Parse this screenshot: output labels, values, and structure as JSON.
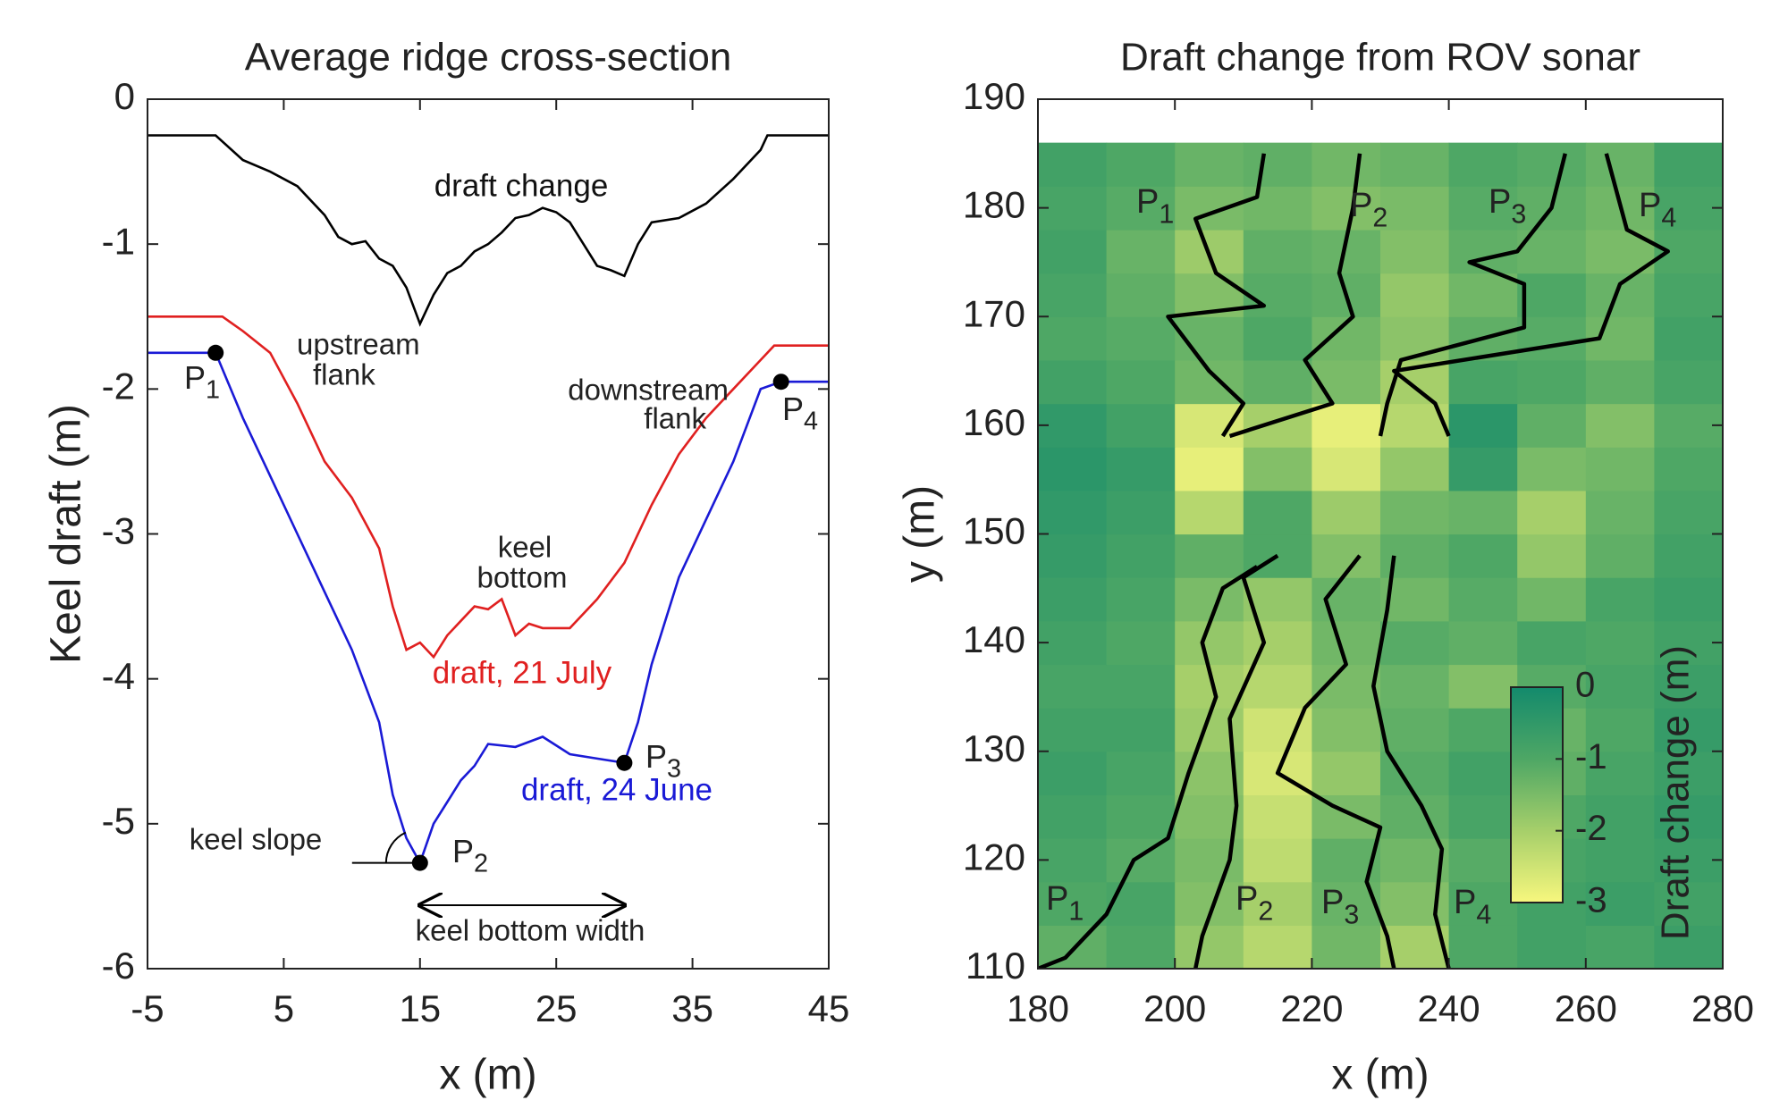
{
  "chart_data": [
    {
      "type": "line",
      "title": "Average ridge cross-section",
      "x_label": "x (m)",
      "y_label": "Keel draft (m)",
      "xlim": [
        -5,
        45
      ],
      "ylim": [
        -6,
        0
      ],
      "xticks": [
        -5,
        5,
        15,
        25,
        35,
        45
      ],
      "yticks": [
        0,
        -1,
        -2,
        -3,
        -4,
        -5,
        -6
      ],
      "series": [
        {
          "name": "draft change",
          "color": "#000000",
          "x": [
            -5,
            0,
            2,
            4,
            6,
            8,
            9,
            10,
            11,
            12,
            13,
            14,
            15,
            16,
            17,
            18,
            19,
            20,
            21,
            22,
            23,
            24,
            25,
            26,
            27,
            28,
            29,
            30,
            31,
            32,
            34,
            36,
            38,
            40,
            40.5,
            45
          ],
          "values": [
            -0.25,
            -0.25,
            -0.42,
            -0.5,
            -0.6,
            -0.8,
            -0.95,
            -1.0,
            -0.98,
            -1.1,
            -1.15,
            -1.3,
            -1.55,
            -1.35,
            -1.2,
            -1.15,
            -1.05,
            -1.0,
            -0.92,
            -0.82,
            -0.8,
            -0.75,
            -0.78,
            -0.85,
            -1.0,
            -1.15,
            -1.18,
            -1.22,
            -1.0,
            -0.85,
            -0.82,
            -0.72,
            -0.55,
            -0.35,
            -0.25,
            -0.25
          ]
        },
        {
          "name": "draft, 21 July",
          "color": "#e02020",
          "x": [
            -5,
            0.5,
            2,
            4,
            6,
            8,
            10,
            12,
            13,
            14,
            15,
            16,
            17,
            18,
            19,
            20,
            21,
            22,
            23,
            24,
            26,
            28,
            30,
            32,
            34,
            36,
            38,
            40,
            41,
            45
          ],
          "values": [
            -1.5,
            -1.5,
            -1.6,
            -1.75,
            -2.1,
            -2.5,
            -2.75,
            -3.1,
            -3.5,
            -3.8,
            -3.75,
            -3.85,
            -3.7,
            -3.6,
            -3.5,
            -3.52,
            -3.45,
            -3.7,
            -3.62,
            -3.65,
            -3.65,
            -3.45,
            -3.2,
            -2.8,
            -2.45,
            -2.2,
            -2.0,
            -1.8,
            -1.7,
            -1.7
          ]
        },
        {
          "name": "draft, 24 June",
          "color": "#1a1ad6",
          "x": [
            -5,
            0,
            2,
            4,
            6,
            8,
            10,
            12,
            13,
            14,
            15,
            16,
            17,
            18,
            19,
            20,
            22,
            24,
            26,
            28,
            30,
            31,
            32,
            34,
            36,
            38,
            40,
            41.5,
            45
          ],
          "values": [
            -1.75,
            -1.75,
            -2.2,
            -2.6,
            -3.0,
            -3.4,
            -3.8,
            -4.3,
            -4.8,
            -5.1,
            -5.27,
            -5.0,
            -4.85,
            -4.7,
            -4.6,
            -4.45,
            -4.47,
            -4.4,
            -4.52,
            -4.55,
            -4.58,
            -4.3,
            -3.9,
            -3.3,
            -2.9,
            -2.5,
            -2.0,
            -1.95,
            -1.95
          ]
        }
      ],
      "points": [
        {
          "label": {
            "text": "P",
            "sub": "1"
          },
          "x": 0,
          "y": -1.75
        },
        {
          "label": {
            "text": "P",
            "sub": "2"
          },
          "x": 15,
          "y": -5.27
        },
        {
          "label": {
            "text": "P",
            "sub": "3"
          },
          "x": 30,
          "y": -4.58
        },
        {
          "label": {
            "text": "P",
            "sub": "4"
          },
          "x": 41.5,
          "y": -1.95
        }
      ],
      "annotations": [
        {
          "lines": [
            "upstream",
            "flank"
          ]
        },
        {
          "lines": [
            "downstream",
            "flank"
          ]
        },
        {
          "lines": [
            "keel",
            "bottom"
          ]
        },
        {
          "lines": [
            "keel slope"
          ]
        },
        {
          "lines": [
            "keel bottom width"
          ]
        }
      ]
    },
    {
      "type": "heatmap",
      "title": "Draft change from ROV sonar",
      "x_label": "x (m)",
      "y_label": "y (m)",
      "xlim": [
        180,
        280
      ],
      "ylim": [
        110,
        190
      ],
      "xticks": [
        180,
        200,
        220,
        240,
        260,
        280
      ],
      "yticks": [
        110,
        120,
        130,
        140,
        150,
        160,
        170,
        180,
        190
      ],
      "x": [
        185,
        195,
        205,
        215,
        225,
        235,
        245,
        255,
        265,
        275
      ],
      "y": [
        112,
        116,
        120,
        124,
        128,
        132,
        136,
        140,
        144,
        148,
        152,
        156,
        160,
        164,
        168,
        172,
        176,
        180,
        184
      ],
      "z": [
        [
          -1.2,
          -1.0,
          -1.8,
          -2.2,
          -1.4,
          -2.0,
          -1.0,
          -0.8,
          -0.9,
          -0.7
        ],
        [
          -1.0,
          -0.9,
          -1.6,
          -2.0,
          -1.3,
          -1.6,
          -1.0,
          -0.8,
          -0.7,
          -0.8
        ],
        [
          -0.9,
          -1.1,
          -1.5,
          -2.3,
          -1.2,
          -1.4,
          -1.1,
          -0.9,
          -0.8,
          -0.7
        ],
        [
          -0.8,
          -1.0,
          -1.6,
          -2.4,
          -1.5,
          -1.2,
          -0.9,
          -1.0,
          -0.8,
          -0.6
        ],
        [
          -0.7,
          -0.9,
          -1.7,
          -2.6,
          -1.8,
          -1.1,
          -0.8,
          -1.2,
          -0.9,
          -0.7
        ],
        [
          -0.8,
          -0.8,
          -1.9,
          -2.5,
          -1.6,
          -1.2,
          -1.0,
          -1.3,
          -1.0,
          -0.6
        ],
        [
          -0.9,
          -0.9,
          -2.0,
          -2.2,
          -1.5,
          -1.3,
          -1.6,
          -1.1,
          -0.9,
          -0.7
        ],
        [
          -0.8,
          -1.0,
          -1.8,
          -2.0,
          -1.4,
          -1.1,
          -1.2,
          -0.9,
          -1.0,
          -0.8
        ],
        [
          -0.7,
          -0.9,
          -1.5,
          -1.8,
          -1.3,
          -1.4,
          -1.1,
          -1.4,
          -0.9,
          -0.7
        ],
        [
          -0.6,
          -0.8,
          -1.2,
          -1.0,
          -1.6,
          -1.2,
          -1.0,
          -1.8,
          -1.2,
          -0.8
        ],
        [
          -0.5,
          -0.7,
          -2.2,
          -1.0,
          -1.9,
          -1.4,
          -1.3,
          -2.0,
          -1.3,
          -0.9
        ],
        [
          -0.4,
          -0.6,
          -2.8,
          -1.6,
          -2.6,
          -1.8,
          -0.6,
          -1.5,
          -1.4,
          -1.0
        ],
        [
          -0.5,
          -0.8,
          -2.6,
          -2.0,
          -2.8,
          -2.2,
          -0.4,
          -1.2,
          -1.6,
          -1.1
        ],
        [
          -0.8,
          -1.0,
          -1.4,
          -1.2,
          -1.5,
          -2.0,
          -0.9,
          -1.0,
          -1.2,
          -0.9
        ],
        [
          -1.0,
          -1.1,
          -1.3,
          -1.0,
          -1.4,
          -1.7,
          -1.2,
          -1.1,
          -1.4,
          -0.8
        ],
        [
          -0.9,
          -1.2,
          -1.6,
          -1.1,
          -1.2,
          -1.8,
          -1.4,
          -1.0,
          -1.3,
          -0.9
        ],
        [
          -0.8,
          -1.3,
          -1.9,
          -1.2,
          -1.3,
          -1.6,
          -1.2,
          -1.3,
          -1.5,
          -1.0
        ],
        [
          -0.9,
          -1.1,
          -1.5,
          -1.4,
          -1.6,
          -1.5,
          -1.1,
          -1.2,
          -1.4,
          -0.9
        ],
        [
          -0.8,
          -1.0,
          -1.3,
          -1.2,
          -1.4,
          -1.3,
          -1.0,
          -1.1,
          -1.3,
          -0.8
        ]
      ],
      "colormap": [
        "#f7f77e",
        "#a6cf6a",
        "#4ea765",
        "#138a6c"
      ],
      "clim": [
        -3,
        0
      ],
      "cticks": [
        0,
        -1,
        -2,
        -3
      ],
      "colorbar_label": "Draft change (m)",
      "profiles": [
        {
          "label": {
            "text": "P",
            "sub": "1"
          },
          "color": "#000000",
          "x": [
            213,
            212,
            203,
            206,
            213,
            199,
            205,
            210,
            207
          ],
          "values": [
            185,
            181,
            179,
            174,
            171,
            170,
            165,
            162,
            159
          ]
        },
        {
          "label": {
            "text": "P",
            "sub": "2"
          },
          "color": "#000000",
          "x": [
            227,
            226,
            224,
            226,
            219,
            223,
            208
          ],
          "values": [
            185,
            180,
            174,
            170,
            166,
            162,
            159
          ]
        },
        {
          "label": {
            "text": "P",
            "sub": "3"
          },
          "color": "#000000",
          "x": [
            257,
            255,
            250,
            243,
            251,
            251,
            233,
            231,
            230
          ],
          "values": [
            185,
            180,
            176,
            175,
            173,
            169,
            166,
            162,
            159
          ]
        },
        {
          "label": {
            "text": "P",
            "sub": "4"
          },
          "color": "#000000",
          "x": [
            263,
            266,
            272,
            265,
            262,
            232,
            238,
            240
          ],
          "values": [
            185,
            178,
            176,
            173,
            168,
            165,
            162,
            159
          ]
        },
        {
          "label": {
            "text": "P",
            "sub": "1"
          },
          "color": "#000000",
          "x": [
            212,
            207,
            204,
            206,
            202,
            199,
            194,
            190,
            184,
            180
          ],
          "values": [
            147,
            145,
            140,
            135,
            128,
            122,
            120,
            115,
            111,
            110
          ]
        },
        {
          "label": {
            "text": "P",
            "sub": "2"
          },
          "color": "#000000",
          "x": [
            215,
            210,
            213,
            208,
            209,
            208,
            204,
            203
          ],
          "values": [
            148,
            146,
            140,
            133,
            125,
            120,
            113,
            110
          ]
        },
        {
          "label": {
            "text": "P",
            "sub": "3"
          },
          "color": "#000000",
          "x": [
            227,
            222,
            225,
            219,
            215,
            223,
            230,
            228,
            231,
            232
          ],
          "values": [
            148,
            144,
            138,
            134,
            128,
            125,
            123,
            118,
            113,
            110
          ]
        },
        {
          "label": {
            "text": "P",
            "sub": "4"
          },
          "color": "#000000",
          "x": [
            232,
            231,
            229,
            231,
            236,
            239,
            238,
            240
          ],
          "values": [
            148,
            143,
            136,
            130,
            125,
            121,
            115,
            110
          ]
        }
      ]
    }
  ]
}
